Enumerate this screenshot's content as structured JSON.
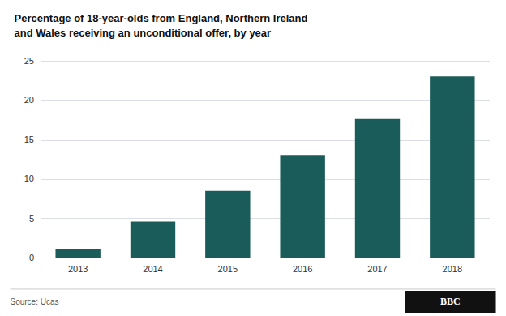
{
  "chart_data": {
    "type": "bar",
    "title": "Percentage of 18-year-olds from England, Northern Ireland\nand Wales receiving an unconditional offer, by year",
    "categories": [
      "2013",
      "2014",
      "2015",
      "2016",
      "2017",
      "2018"
    ],
    "values": [
      1.1,
      4.6,
      8.5,
      13.0,
      17.7,
      23.0
    ],
    "color": "#1a5c5a",
    "ylim": [
      0,
      25
    ],
    "yticks": [
      0,
      5,
      10,
      15,
      20,
      25
    ],
    "grid": true,
    "annotations": [
      "Source: Ucas",
      "BBC"
    ]
  }
}
